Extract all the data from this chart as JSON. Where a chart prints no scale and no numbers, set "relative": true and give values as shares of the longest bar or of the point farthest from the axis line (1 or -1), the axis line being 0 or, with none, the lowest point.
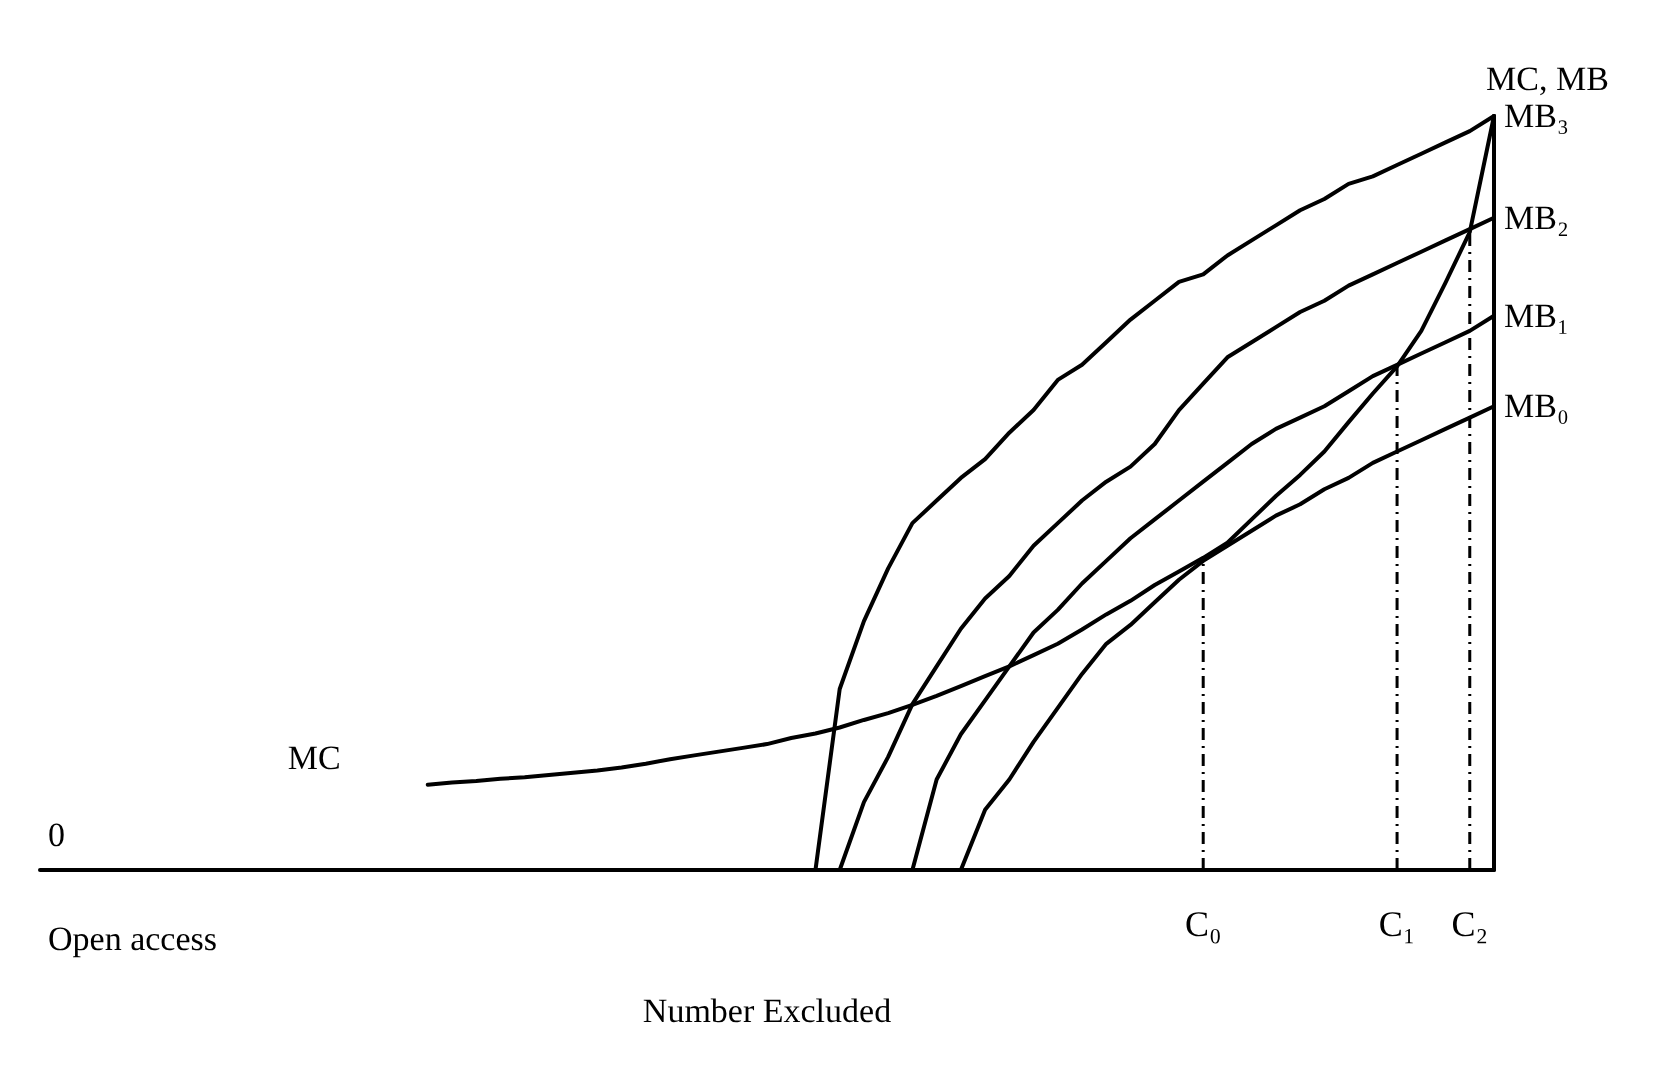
{
  "chart_data": {
    "type": "line",
    "relative": true,
    "xlabel": "Number Excluded",
    "ylabel": "MC, MB",
    "categories": [
      null,
      null,
      null,
      null,
      null,
      null,
      null,
      null,
      null,
      null,
      null,
      null,
      null,
      null,
      null,
      null,
      null,
      null,
      null,
      null,
      null,
      null,
      null,
      null,
      null,
      null,
      null,
      null,
      null,
      null,
      null,
      null,
      null,
      null,
      null,
      null,
      null,
      null,
      null,
      null,
      null,
      null,
      null,
      null,
      null,
      null,
      null,
      null,
      "C₀",
      null,
      null,
      null,
      null,
      null,
      null,
      null,
      "C₁",
      null,
      null,
      "C₂",
      null
    ],
    "series": [
      {
        "name": "MC",
        "color": "#000000",
        "values": [
          null,
          null,
          null,
          null,
          null,
          null,
          null,
          null,
          null,
          null,
          null,
          null,
          null,
          null,
          null,
          null,
          0.113,
          0.116,
          0.118,
          0.121,
          0.123,
          0.126,
          0.129,
          0.132,
          0.136,
          0.141,
          0.147,
          0.152,
          0.157,
          0.162,
          0.167,
          0.175,
          0.181,
          0.189,
          0.199,
          0.208,
          0.219,
          0.231,
          0.244,
          0.257,
          0.27,
          0.285,
          0.3,
          0.319,
          0.339,
          0.357,
          0.378,
          0.396,
          0.414,
          0.434,
          0.465,
          0.496,
          0.524,
          0.555,
          0.594,
          0.632,
          0.668,
          0.715,
          0.779,
          0.846,
          1.0
        ]
      },
      {
        "name": "MB₃",
        "color": "#000000",
        "values": [
          null,
          null,
          null,
          null,
          null,
          null,
          null,
          null,
          null,
          null,
          null,
          null,
          null,
          null,
          null,
          null,
          null,
          null,
          null,
          null,
          null,
          null,
          null,
          null,
          null,
          null,
          null,
          null,
          null,
          null,
          null,
          null,
          0,
          0.24,
          0.33,
          0.4,
          0.46,
          0.49,
          0.52,
          0.545,
          0.58,
          0.61,
          0.65,
          0.67,
          0.7,
          0.73,
          0.755,
          0.78,
          0.79,
          0.815,
          0.835,
          0.855,
          0.875,
          0.89,
          0.91,
          0.92,
          0.935,
          0.95,
          0.965,
          0.98,
          1.0
        ]
      },
      {
        "name": "MB₂",
        "color": "#000000",
        "values": [
          null,
          null,
          null,
          null,
          null,
          null,
          null,
          null,
          null,
          null,
          null,
          null,
          null,
          null,
          null,
          null,
          null,
          null,
          null,
          null,
          null,
          null,
          null,
          null,
          null,
          null,
          null,
          null,
          null,
          null,
          null,
          null,
          null,
          0,
          0.09,
          0.15,
          0.22,
          0.27,
          0.32,
          0.36,
          0.39,
          0.43,
          0.46,
          0.49,
          0.515,
          0.535,
          0.565,
          0.61,
          0.645,
          0.68,
          0.7,
          0.72,
          0.74,
          0.755,
          0.775,
          0.79,
          0.805,
          0.82,
          0.835,
          0.85,
          0.865
        ]
      },
      {
        "name": "MB₁",
        "color": "#000000",
        "values": [
          null,
          null,
          null,
          null,
          null,
          null,
          null,
          null,
          null,
          null,
          null,
          null,
          null,
          null,
          null,
          null,
          null,
          null,
          null,
          null,
          null,
          null,
          null,
          null,
          null,
          null,
          null,
          null,
          null,
          null,
          null,
          null,
          null,
          null,
          null,
          null,
          0,
          0.12,
          0.18,
          0.225,
          0.27,
          0.315,
          0.345,
          0.38,
          0.41,
          0.44,
          0.465,
          0.49,
          0.515,
          0.54,
          0.565,
          0.585,
          0.6,
          0.615,
          0.635,
          0.655,
          0.67,
          0.685,
          0.7,
          0.715,
          0.735
        ]
      },
      {
        "name": "MB₀",
        "color": "#000000",
        "values": [
          null,
          null,
          null,
          null,
          null,
          null,
          null,
          null,
          null,
          null,
          null,
          null,
          null,
          null,
          null,
          null,
          null,
          null,
          null,
          null,
          null,
          null,
          null,
          null,
          null,
          null,
          null,
          null,
          null,
          null,
          null,
          null,
          null,
          null,
          null,
          null,
          null,
          null,
          0,
          0.08,
          0.12,
          0.17,
          0.215,
          0.26,
          0.3,
          0.325,
          0.355,
          0.385,
          0.41,
          0.43,
          0.45,
          0.47,
          0.485,
          0.505,
          0.52,
          0.54,
          0.555,
          0.57,
          0.585,
          0.6,
          0.615
        ]
      }
    ],
    "ref_lines": [
      {
        "axis": "x",
        "value": "C₀",
        "line_style": "dashed"
      },
      {
        "axis": "x",
        "value": "C₁",
        "line_style": "dashed"
      },
      {
        "axis": "x",
        "value": "C₂",
        "line_style": "dashed"
      }
    ],
    "annotations": [
      "0",
      "Open access"
    ],
    "legend": false,
    "grid": false,
    "marker": "none",
    "line_style": "solid"
  }
}
